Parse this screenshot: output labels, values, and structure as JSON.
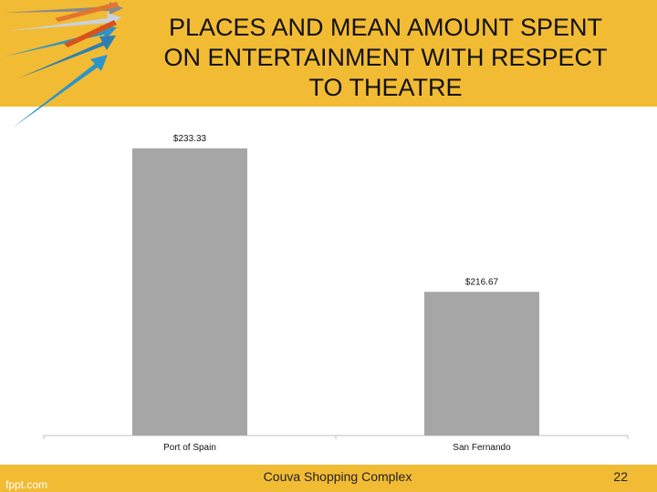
{
  "slide": {
    "title": "PLACES AND MEAN AMOUNT SPENT\nON ENTERTAINMENT WITH RESPECT\nTO THEATRE",
    "footer_text": "Couva Shopping Complex",
    "page_number": "22",
    "brand": "fppt.com"
  },
  "colors": {
    "band": "#f2bb34",
    "bar": "#a6a6a6",
    "axis": "#bfbfbf"
  },
  "chart_data": {
    "type": "bar",
    "title": "",
    "xlabel": "",
    "ylabel": "",
    "categories": [
      "Port of Spain",
      "San Fernando"
    ],
    "values": [
      233.33,
      216.67
    ],
    "data_labels": [
      "$233.33",
      "$216.67"
    ],
    "ylim": [
      200,
      235
    ],
    "grid": false,
    "legend": "none"
  }
}
